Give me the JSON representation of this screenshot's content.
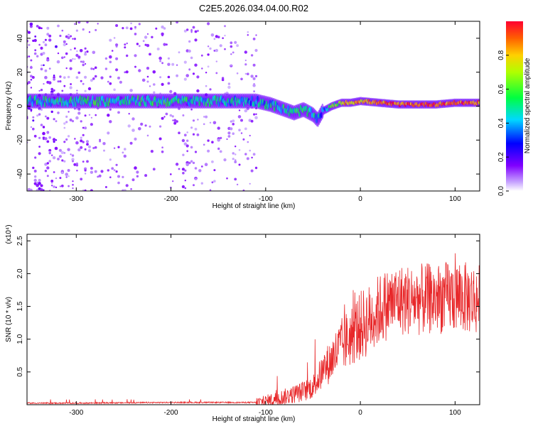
{
  "title": "C2E5.2026.034.04.00.R02",
  "chart_data": [
    {
      "type": "heatmap",
      "title": "C2E5.2026.034.04.00.R02",
      "xlabel": "Height of straight line (km)",
      "ylabel": "Frequency (Hz)",
      "xlim": [
        -352,
        126
      ],
      "ylim": [
        -50,
        50
      ],
      "xticks": [
        -300,
        -200,
        -100,
        0,
        100
      ],
      "yticks": [
        -40,
        -20,
        0,
        20,
        40
      ],
      "colorbar": {
        "label": "Normalized spectral amplitude",
        "range": [
          0.0,
          1.0
        ],
        "ticks": [
          0.0,
          0.2,
          0.4,
          0.6,
          0.8
        ],
        "tick_labels": [
          "0.0",
          "0.2",
          "0.4",
          "0.6",
          "0.8"
        ],
        "colormap": "rainbow",
        "low_color": "#ffffff",
        "high_color": "#ff0000"
      },
      "ridge": {
        "description": "dominant frequency track",
        "x": [
          -352,
          -300,
          -250,
          -200,
          -150,
          -110,
          -95,
          -80,
          -70,
          -60,
          -50,
          -45,
          -40,
          -30,
          -20,
          -10,
          0,
          20,
          40,
          60,
          80,
          100,
          126
        ],
        "frequency": [
          3,
          3,
          3,
          3,
          3,
          3,
          1,
          -2,
          -4,
          -2,
          -5,
          -8,
          -3,
          0,
          2,
          2,
          3,
          2,
          1,
          1,
          1,
          2,
          2
        ],
        "amplitude": [
          0.45,
          0.5,
          0.5,
          0.5,
          0.45,
          0.4,
          0.45,
          0.5,
          0.5,
          0.55,
          0.5,
          0.45,
          0.35,
          0.55,
          0.75,
          0.8,
          0.8,
          0.85,
          0.9,
          0.9,
          0.9,
          0.9,
          0.85
        ]
      }
    },
    {
      "type": "line",
      "title": "",
      "xlabel": "Height of straight line (km)",
      "ylabel": "SNR (10 * v/v)",
      "y_multiplier": "(x10⁴)",
      "xlim": [
        -352,
        126
      ],
      "ylim": [
        0,
        2.6
      ],
      "xticks": [
        -300,
        -200,
        -100,
        0,
        100
      ],
      "yticks": [
        0.5,
        1.0,
        1.5,
        2.0,
        2.5
      ],
      "yticklabels": [
        "0.5",
        "1.0",
        "1.5",
        "2.0",
        "2.5"
      ],
      "line_color": "#e8282a",
      "trend": {
        "x": [
          -352,
          -300,
          -200,
          -150,
          -110,
          -100,
          -80,
          -60,
          -50,
          -40,
          -30,
          -20,
          -10,
          0,
          10,
          20,
          30,
          40,
          60,
          80,
          100,
          126
        ],
        "snr": [
          0.02,
          0.02,
          0.03,
          0.03,
          0.03,
          0.05,
          0.12,
          0.2,
          0.28,
          0.5,
          0.7,
          0.9,
          1.05,
          1.2,
          1.3,
          1.45,
          1.55,
          1.6,
          1.6,
          1.62,
          1.65,
          1.6
        ]
      }
    }
  ]
}
